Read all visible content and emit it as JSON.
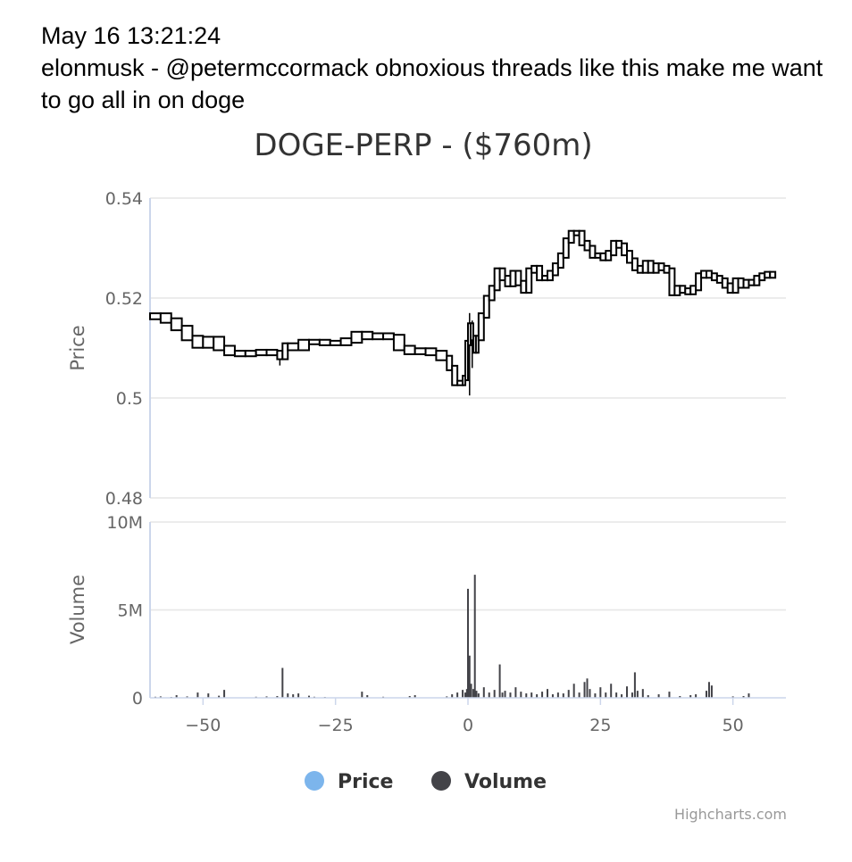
{
  "header": {
    "timestamp": "May 16 13:21:24",
    "message": "elonmusk - @petermccormack obnoxious threads like this make me want to go all in on doge"
  },
  "chart_data": {
    "type": "candlestick",
    "title": "DOGE-PERP - ($760m)",
    "xlim": [
      -60,
      60
    ],
    "x_ticks": [
      -50,
      -25,
      0,
      25,
      50
    ],
    "x_tick_labels": [
      "−50",
      "−25",
      "0",
      "25",
      "50"
    ],
    "price_axis": {
      "title": "Price",
      "ylim": [
        0.48,
        0.54
      ],
      "ticks": [
        0.48,
        0.5,
        0.52,
        0.54
      ],
      "tick_labels": [
        "0.48",
        "0.5",
        "0.52",
        "0.54"
      ]
    },
    "volume_axis": {
      "title": "Volume",
      "ylim": [
        0,
        10000000
      ],
      "ticks": [
        0,
        5000000,
        10000000
      ],
      "tick_labels": [
        "0",
        "5M",
        "10M"
      ]
    },
    "legend": [
      {
        "name": "Price",
        "color": "#7cb5ec"
      },
      {
        "name": "Volume",
        "color": "#434348"
      }
    ],
    "price_series": [
      [
        -60,
        0.5162
      ],
      [
        -58,
        0.5165
      ],
      [
        -56,
        0.5155
      ],
      [
        -54,
        0.514
      ],
      [
        -52,
        0.512
      ],
      [
        -50,
        0.5105
      ],
      [
        -48,
        0.5118
      ],
      [
        -46,
        0.51
      ],
      [
        -44,
        0.509
      ],
      [
        -42,
        0.5088
      ],
      [
        -40,
        0.509
      ],
      [
        -38,
        0.5092
      ],
      [
        -36,
        0.509
      ],
      [
        -35,
        0.5082
      ],
      [
        -34,
        0.5105
      ],
      [
        -32,
        0.51
      ],
      [
        -30,
        0.5112
      ],
      [
        -28,
        0.5112
      ],
      [
        -26,
        0.511
      ],
      [
        -24,
        0.511
      ],
      [
        -22,
        0.5115
      ],
      [
        -20,
        0.5128
      ],
      [
        -18,
        0.5122
      ],
      [
        -16,
        0.5125
      ],
      [
        -14,
        0.5122
      ],
      [
        -12,
        0.51
      ],
      [
        -10,
        0.5092
      ],
      [
        -8,
        0.5095
      ],
      [
        -6,
        0.509
      ],
      [
        -4,
        0.508
      ],
      [
        -3,
        0.506
      ],
      [
        -2,
        0.503
      ],
      [
        -1,
        0.503
      ],
      [
        -0.5,
        0.504
      ],
      [
        0,
        0.511
      ],
      [
        0.5,
        0.5145
      ],
      [
        1,
        0.512
      ],
      [
        1.5,
        0.5095
      ],
      [
        2,
        0.512
      ],
      [
        3,
        0.5165
      ],
      [
        4,
        0.52
      ],
      [
        5,
        0.522
      ],
      [
        6,
        0.5255
      ],
      [
        7,
        0.524
      ],
      [
        8,
        0.5228
      ],
      [
        9,
        0.525
      ],
      [
        10,
        0.523
      ],
      [
        11,
        0.5215
      ],
      [
        12,
        0.5255
      ],
      [
        13,
        0.526
      ],
      [
        14,
        0.524
      ],
      [
        15,
        0.524
      ],
      [
        16,
        0.525
      ],
      [
        17,
        0.5265
      ],
      [
        18,
        0.5285
      ],
      [
        19,
        0.5315
      ],
      [
        20,
        0.533
      ],
      [
        21,
        0.533
      ],
      [
        22,
        0.531
      ],
      [
        23,
        0.53
      ],
      [
        24,
        0.5285
      ],
      [
        25,
        0.5285
      ],
      [
        26,
        0.528
      ],
      [
        27,
        0.529
      ],
      [
        28,
        0.531
      ],
      [
        29,
        0.5305
      ],
      [
        30,
        0.529
      ],
      [
        31,
        0.5275
      ],
      [
        32,
        0.526
      ],
      [
        33,
        0.5255
      ],
      [
        34,
        0.527
      ],
      [
        35,
        0.5255
      ],
      [
        36,
        0.5265
      ],
      [
        37,
        0.526
      ],
      [
        38,
        0.5255
      ],
      [
        39,
        0.521
      ],
      [
        40,
        0.522
      ],
      [
        41,
        0.5215
      ],
      [
        42,
        0.5212
      ],
      [
        43,
        0.522
      ],
      [
        44,
        0.5245
      ],
      [
        45,
        0.525
      ],
      [
        46,
        0.5245
      ],
      [
        47,
        0.524
      ],
      [
        48,
        0.5235
      ],
      [
        49,
        0.5225
      ],
      [
        50,
        0.5215
      ],
      [
        51,
        0.5235
      ],
      [
        52,
        0.5225
      ],
      [
        53,
        0.5232
      ],
      [
        54,
        0.523
      ],
      [
        55,
        0.524
      ],
      [
        56,
        0.5245
      ],
      [
        57,
        0.5248
      ],
      [
        58,
        0.5245
      ]
    ],
    "price_wicks": [
      {
        "x": 0.3,
        "low": 0.5005,
        "high": 0.517
      },
      {
        "x": 0.8,
        "low": 0.506,
        "high": 0.5155
      },
      {
        "x": -35.5,
        "low": 0.5065,
        "high": 0.5092
      }
    ],
    "volume_series": [
      [
        -59,
        60000
      ],
      [
        -58,
        80000
      ],
      [
        -56,
        50000
      ],
      [
        -55,
        150000
      ],
      [
        -53,
        80000
      ],
      [
        -51,
        300000
      ],
      [
        -49,
        250000
      ],
      [
        -47,
        120000
      ],
      [
        -46,
        450000
      ],
      [
        -40,
        60000
      ],
      [
        -38,
        80000
      ],
      [
        -36,
        100000
      ],
      [
        -35,
        1700000
      ],
      [
        -34,
        250000
      ],
      [
        -33,
        200000
      ],
      [
        -32,
        250000
      ],
      [
        -30,
        120000
      ],
      [
        -29,
        60000
      ],
      [
        -27,
        50000
      ],
      [
        -20,
        350000
      ],
      [
        -19,
        150000
      ],
      [
        -16,
        60000
      ],
      [
        -11,
        100000
      ],
      [
        -10,
        150000
      ],
      [
        -4,
        80000
      ],
      [
        -3,
        200000
      ],
      [
        -2,
        300000
      ],
      [
        -1,
        450000
      ],
      [
        -0.5,
        300000
      ],
      [
        -0.2,
        500000
      ],
      [
        0,
        6200000
      ],
      [
        0.3,
        2400000
      ],
      [
        0.6,
        800000
      ],
      [
        1,
        500000
      ],
      [
        1.3,
        7000000
      ],
      [
        1.6,
        400000
      ],
      [
        2,
        250000
      ],
      [
        3,
        600000
      ],
      [
        4,
        300000
      ],
      [
        5,
        450000
      ],
      [
        6,
        1900000
      ],
      [
        6.5,
        300000
      ],
      [
        7,
        400000
      ],
      [
        8,
        300000
      ],
      [
        9,
        600000
      ],
      [
        10,
        350000
      ],
      [
        11,
        250000
      ],
      [
        12,
        300000
      ],
      [
        13,
        200000
      ],
      [
        14,
        350000
      ],
      [
        15,
        500000
      ],
      [
        16,
        200000
      ],
      [
        17,
        300000
      ],
      [
        18,
        250000
      ],
      [
        19,
        450000
      ],
      [
        20,
        800000
      ],
      [
        21,
        300000
      ],
      [
        22,
        900000
      ],
      [
        22.5,
        1100000
      ],
      [
        23,
        500000
      ],
      [
        24,
        250000
      ],
      [
        25,
        600000
      ],
      [
        26,
        300000
      ],
      [
        27,
        800000
      ],
      [
        28,
        300000
      ],
      [
        29,
        200000
      ],
      [
        30,
        650000
      ],
      [
        31,
        300000
      ],
      [
        31.5,
        1450000
      ],
      [
        32,
        400000
      ],
      [
        33,
        500000
      ],
      [
        34,
        150000
      ],
      [
        36,
        200000
      ],
      [
        38,
        350000
      ],
      [
        40,
        100000
      ],
      [
        42,
        150000
      ],
      [
        43,
        200000
      ],
      [
        45,
        400000
      ],
      [
        45.5,
        900000
      ],
      [
        46,
        700000
      ],
      [
        50,
        80000
      ],
      [
        52,
        100000
      ],
      [
        53,
        250000
      ]
    ],
    "credits": "Highcharts.com"
  }
}
